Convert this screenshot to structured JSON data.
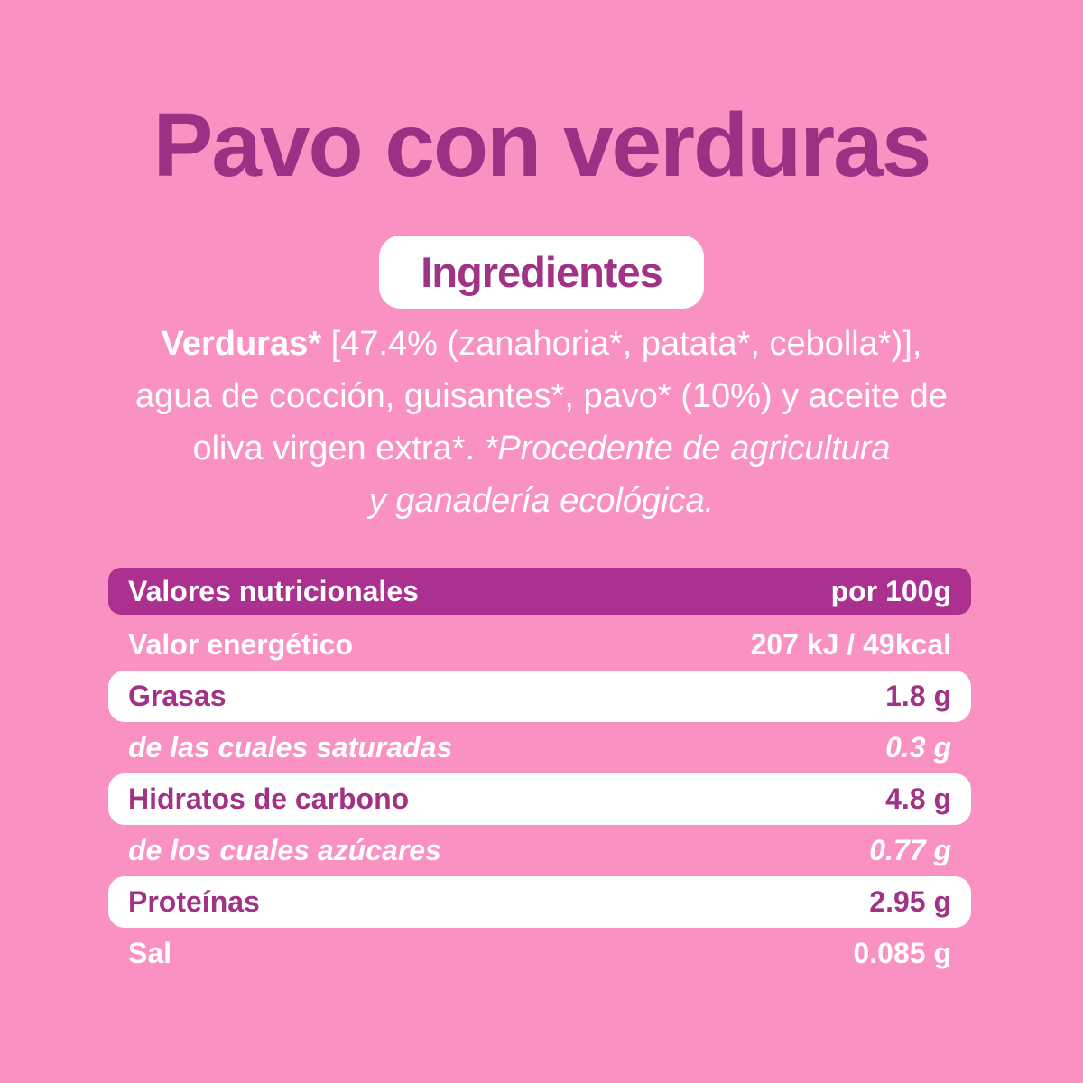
{
  "page": {
    "title": "Pavo con verduras",
    "badge_label": "Ingredientes"
  },
  "ingredients": {
    "line1_bold": "Verduras*",
    "line1_rest": " [47.4% (zanahoria*, patata*, cebolla*)],",
    "line2": "agua de cocción, guisantes*, pavo* (10%) y aceite de",
    "line3_normal": "oliva virgen extra*. ",
    "line3_italic": "*Procedente de agricultura",
    "line4_italic": "y ganadería ecológica."
  },
  "nutrition_table": {
    "header": {
      "label": "Valores nutricionales",
      "value": "por 100g"
    },
    "rows": [
      {
        "label": "Valor energético",
        "value": "207 kJ / 49kcal",
        "style": "pink"
      },
      {
        "label": "Grasas",
        "value": "1.8 g",
        "style": "white"
      },
      {
        "label": "de las cuales saturadas",
        "value": "0.3 g",
        "style": "pink-italic"
      },
      {
        "label": "Hidratos de carbono",
        "value": "4.8 g",
        "style": "white"
      },
      {
        "label": "de los cuales azúcares",
        "value": "0.77 g",
        "style": "pink-italic"
      },
      {
        "label": "Proteínas",
        "value": "2.95 g",
        "style": "white"
      },
      {
        "label": "Sal",
        "value": "0.085 g",
        "style": "pink"
      }
    ]
  },
  "colors": {
    "background_pink": "#f992c3",
    "title_purple": "#9c3084",
    "table_header_purple": "#ac3090",
    "row_label_purple": "#a03386",
    "white": "#ffffff"
  }
}
